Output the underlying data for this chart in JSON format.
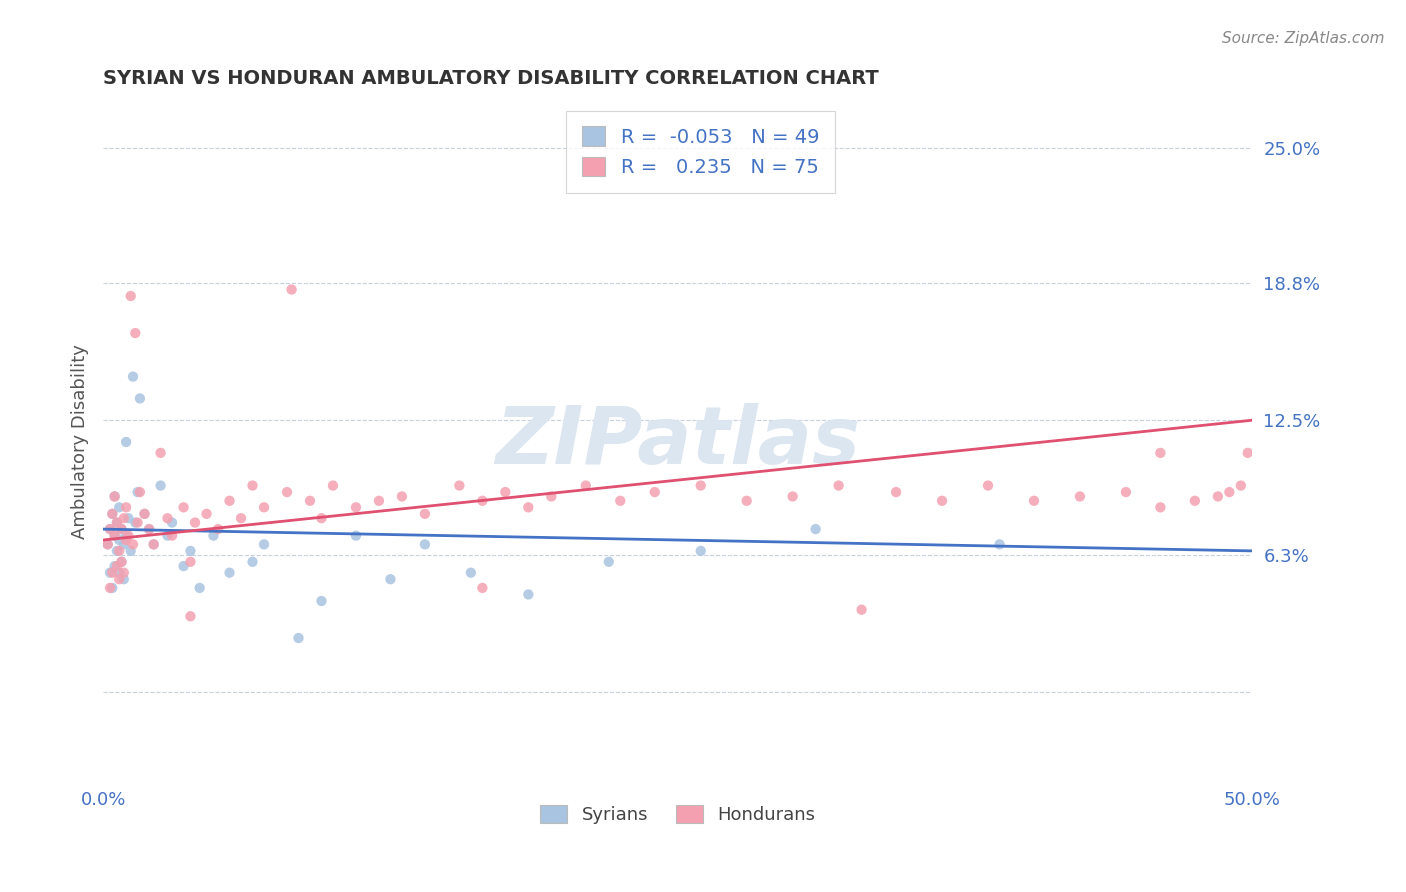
{
  "title": "SYRIAN VS HONDURAN AMBULATORY DISABILITY CORRELATION CHART",
  "source": "Source: ZipAtlas.com",
  "ylabel": "Ambulatory Disability",
  "xlim": [
    0.0,
    0.5
  ],
  "ylim": [
    -0.04,
    0.27
  ],
  "xticks": [
    0.0,
    0.5
  ],
  "xticklabels": [
    "0.0%",
    "50.0%"
  ],
  "ytick_positions": [
    0.063,
    0.125,
    0.188,
    0.25
  ],
  "ytick_labels": [
    "6.3%",
    "12.5%",
    "18.8%",
    "25.0%"
  ],
  "grid_yticks": [
    0.0,
    0.063,
    0.125,
    0.188,
    0.25
  ],
  "syrian_color": "#a8c4e0",
  "honduran_color": "#f4a0b0",
  "syrian_line_color": "#4472c4",
  "honduran_line_color": "#e05070",
  "legend_text_color": "#4472c4",
  "background_color": "#ffffff",
  "watermark": "ZIPatlas",
  "R_syrian": -0.053,
  "N_syrian": 49,
  "R_honduran": 0.235,
  "N_honduran": 75,
  "syrian_x": [
    0.002,
    0.003,
    0.003,
    0.004,
    0.004,
    0.005,
    0.005,
    0.005,
    0.006,
    0.006,
    0.007,
    0.007,
    0.007,
    0.008,
    0.008,
    0.009,
    0.009,
    0.01,
    0.01,
    0.011,
    0.012,
    0.013,
    0.014,
    0.015,
    0.016,
    0.018,
    0.02,
    0.022,
    0.025,
    0.028,
    0.03,
    0.035,
    0.038,
    0.042,
    0.048,
    0.055,
    0.065,
    0.07,
    0.085,
    0.095,
    0.11,
    0.125,
    0.14,
    0.16,
    0.185,
    0.22,
    0.26,
    0.31,
    0.39
  ],
  "syrian_y": [
    0.068,
    0.075,
    0.055,
    0.082,
    0.048,
    0.072,
    0.058,
    0.09,
    0.065,
    0.078,
    0.07,
    0.055,
    0.085,
    0.06,
    0.075,
    0.068,
    0.052,
    0.115,
    0.072,
    0.08,
    0.065,
    0.145,
    0.078,
    0.092,
    0.135,
    0.082,
    0.075,
    0.068,
    0.095,
    0.072,
    0.078,
    0.058,
    0.065,
    0.048,
    0.072,
    0.055,
    0.06,
    0.068,
    0.025,
    0.042,
    0.072,
    0.052,
    0.068,
    0.055,
    0.045,
    0.06,
    0.065,
    0.075,
    0.068
  ],
  "honduran_x": [
    0.002,
    0.003,
    0.003,
    0.004,
    0.004,
    0.005,
    0.005,
    0.006,
    0.006,
    0.007,
    0.007,
    0.008,
    0.008,
    0.009,
    0.009,
    0.01,
    0.01,
    0.011,
    0.012,
    0.013,
    0.014,
    0.015,
    0.016,
    0.018,
    0.02,
    0.022,
    0.025,
    0.028,
    0.03,
    0.035,
    0.038,
    0.04,
    0.045,
    0.05,
    0.055,
    0.06,
    0.065,
    0.07,
    0.08,
    0.09,
    0.095,
    0.1,
    0.11,
    0.12,
    0.13,
    0.14,
    0.155,
    0.165,
    0.175,
    0.185,
    0.195,
    0.21,
    0.225,
    0.24,
    0.26,
    0.28,
    0.3,
    0.32,
    0.345,
    0.365,
    0.385,
    0.405,
    0.425,
    0.445,
    0.46,
    0.475,
    0.485,
    0.49,
    0.495,
    0.498,
    0.038,
    0.082,
    0.165,
    0.33,
    0.46
  ],
  "honduran_y": [
    0.068,
    0.075,
    0.048,
    0.082,
    0.055,
    0.072,
    0.09,
    0.058,
    0.078,
    0.065,
    0.052,
    0.075,
    0.06,
    0.08,
    0.055,
    0.07,
    0.085,
    0.072,
    0.182,
    0.068,
    0.165,
    0.078,
    0.092,
    0.082,
    0.075,
    0.068,
    0.11,
    0.08,
    0.072,
    0.085,
    0.06,
    0.078,
    0.082,
    0.075,
    0.088,
    0.08,
    0.095,
    0.085,
    0.092,
    0.088,
    0.08,
    0.095,
    0.085,
    0.088,
    0.09,
    0.082,
    0.095,
    0.088,
    0.092,
    0.085,
    0.09,
    0.095,
    0.088,
    0.092,
    0.095,
    0.088,
    0.09,
    0.095,
    0.092,
    0.088,
    0.095,
    0.088,
    0.09,
    0.092,
    0.11,
    0.088,
    0.09,
    0.092,
    0.095,
    0.11,
    0.035,
    0.185,
    0.048,
    0.038,
    0.085
  ],
  "syr_line_x0": 0.0,
  "syr_line_y0": 0.075,
  "syr_line_x1": 0.5,
  "syr_line_y1": 0.065,
  "hon_line_x0": 0.0,
  "hon_line_y0": 0.07,
  "hon_line_x1": 0.5,
  "hon_line_y1": 0.125
}
